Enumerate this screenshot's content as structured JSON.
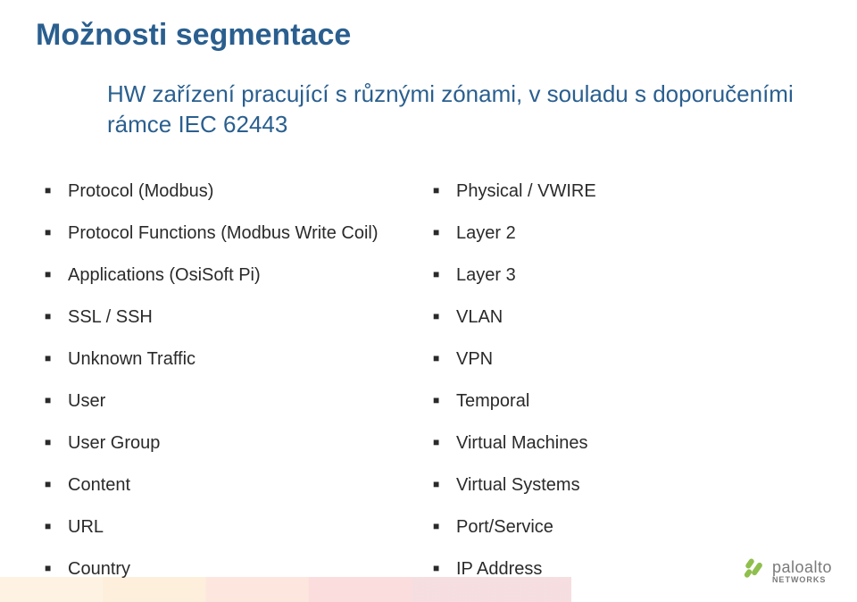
{
  "title": "Možnosti segmentace",
  "title_color": "#2a5f8f",
  "subtitle": "HW zařízení pracující s různými zónami, v souladu s doporučeními rámce IEC 62443",
  "subtitle_color": "#2a5f8f",
  "bullet_color": "#2a2a2a",
  "text_color": "#2a2a2a",
  "left_list": [
    "Protocol (Modbus)",
    "Protocol Functions (Modbus Write Coil)",
    "Applications (OsiSoft Pi)",
    "SSL / SSH",
    "Unknown Traffic",
    "User",
    "User Group",
    "Content",
    "URL",
    "Country"
  ],
  "right_list": [
    "Physical / VWIRE",
    "Layer 2",
    "Layer 3",
    "VLAN",
    "VPN",
    "Temporal",
    "Virtual Machines",
    "Virtual Systems",
    "Port/Service",
    "IP Address"
  ],
  "logo": {
    "top": "paloalto",
    "bottom": "NETWORKS",
    "mark_color": "#8fbf4d",
    "text_color": "#7a7a7a"
  }
}
